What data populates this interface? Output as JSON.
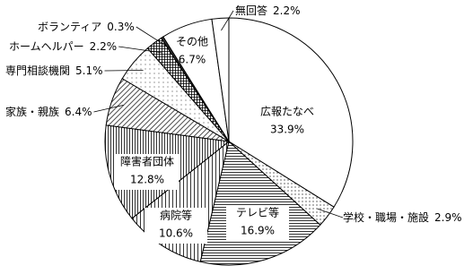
{
  "chart_data": {
    "type": "pie",
    "categories": [
      "広報たなべ",
      "学校・職場・施設",
      "テレビ等",
      "病院等",
      "障害者団体",
      "家族・親族",
      "専門相談機関",
      "ホームヘルパー",
      "ボランティア",
      "その他",
      "無回答"
    ],
    "values": [
      33.9,
      2.9,
      16.9,
      10.6,
      12.8,
      6.4,
      5.1,
      2.2,
      0.3,
      6.7,
      2.2
    ],
    "value_labels": [
      "33.9%",
      "2.9%",
      "16.9%",
      "10.6%",
      "12.8%",
      "6.4%",
      "5.1%",
      "2.2%",
      "0.3%",
      "6.7%",
      "2.2%"
    ]
  }
}
